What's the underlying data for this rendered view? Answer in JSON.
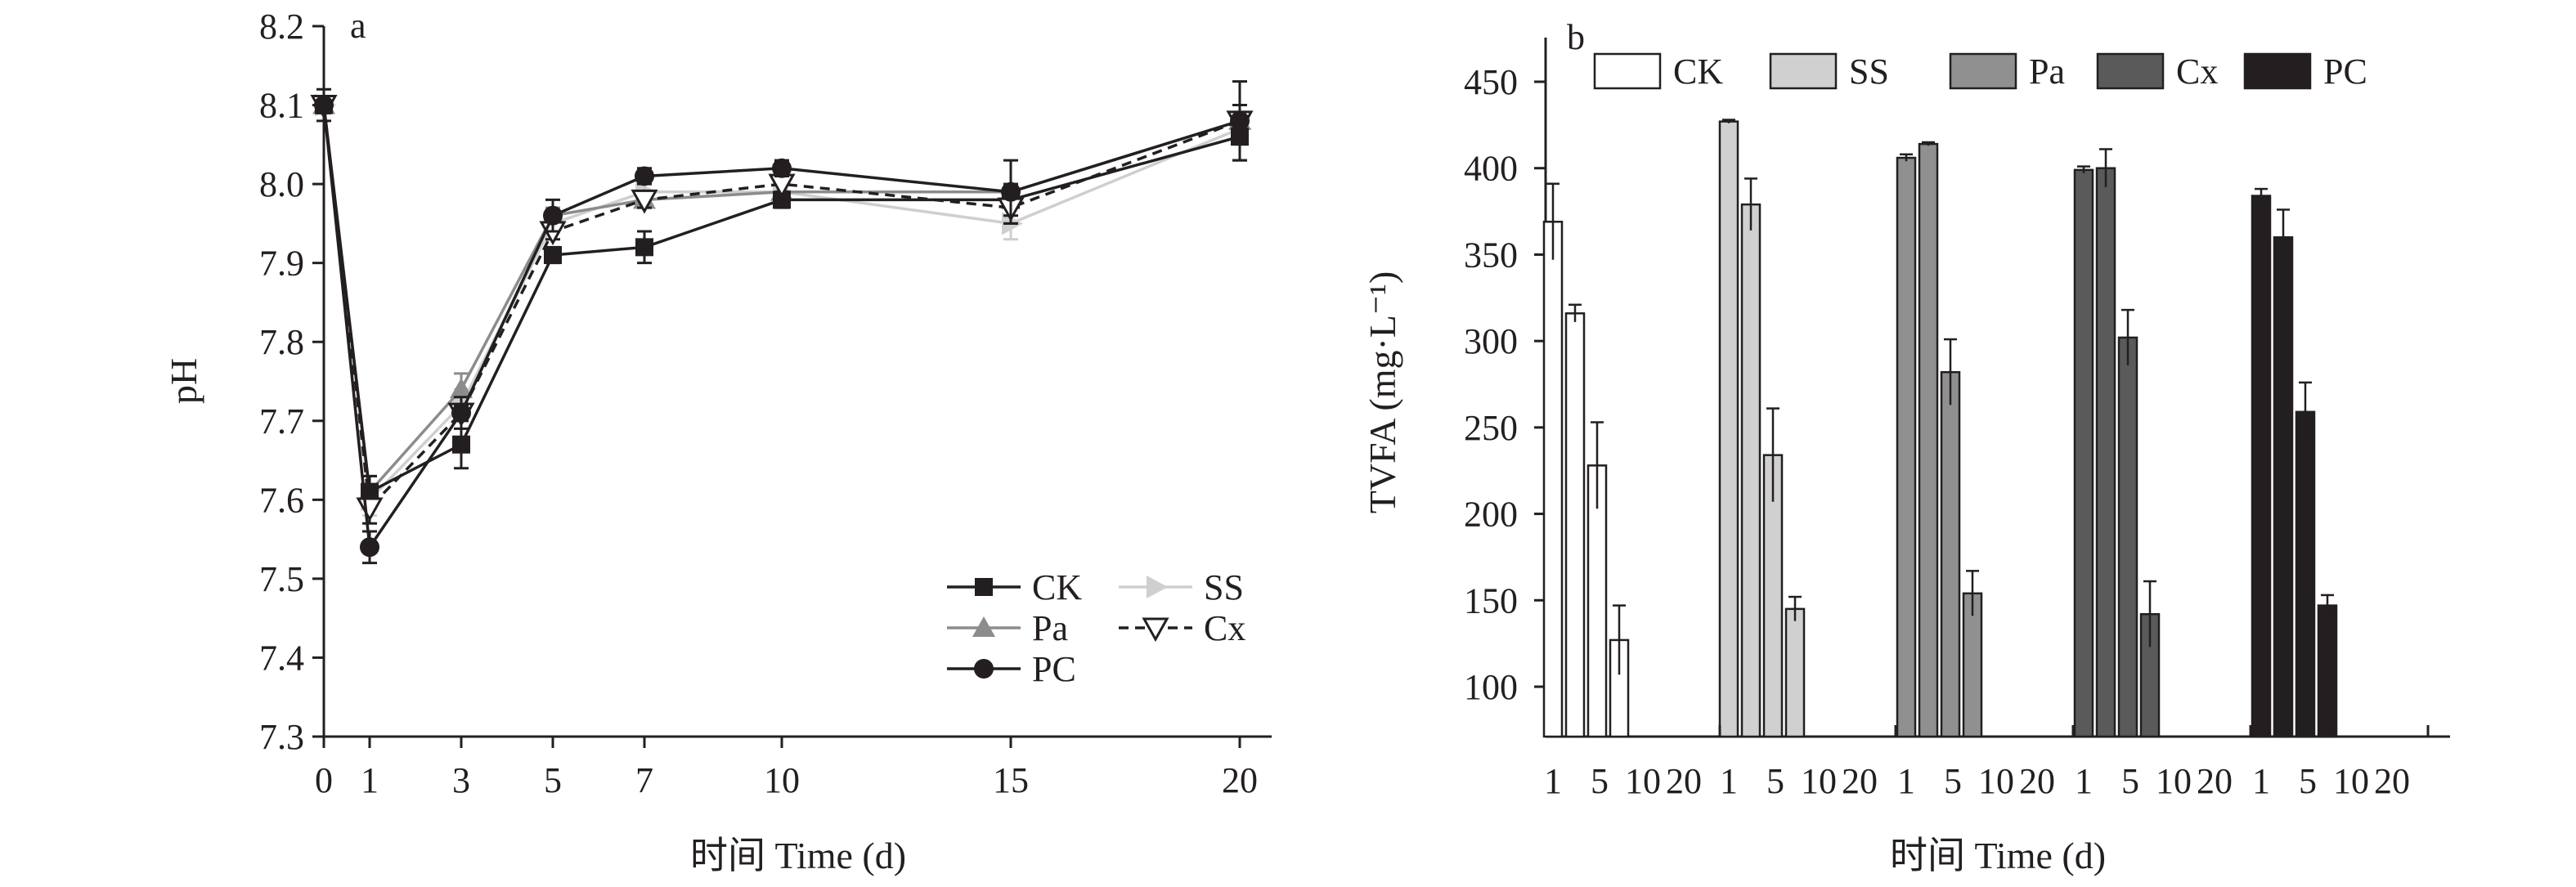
{
  "figure": {
    "panels": [
      {
        "label": "a"
      },
      {
        "label": "b"
      }
    ]
  },
  "chart_data": [
    {
      "type": "line",
      "panel": "a",
      "title": "",
      "xlabel": "时间 Time (d)",
      "ylabel": "pH",
      "x": [
        0,
        1,
        3,
        5,
        7,
        10,
        15,
        20
      ],
      "xticks": [
        "0",
        "1",
        "3",
        "5",
        "7",
        "10",
        "15",
        "20"
      ],
      "ylim": [
        7.3,
        8.2
      ],
      "yticks": [
        "7.3",
        "7.4",
        "7.5",
        "7.6",
        "7.7",
        "7.8",
        "7.9",
        "8.0",
        "8.1",
        "8.2"
      ],
      "legend_position": "lower-right",
      "series": [
        {
          "name": "CK",
          "values": [
            8.1,
            7.61,
            7.67,
            7.91,
            7.92,
            7.98,
            7.98,
            8.06
          ],
          "errors": [
            0.01,
            0.02,
            0.03,
            0.01,
            0.02,
            0.01,
            0.02,
            0.03
          ],
          "color": "#231f20",
          "marker": "square",
          "dash": "solid"
        },
        {
          "name": "SS",
          "values": [
            8.1,
            7.6,
            7.72,
            7.95,
            7.99,
            7.99,
            7.95,
            8.07
          ],
          "errors": [
            0.01,
            0.02,
            0.02,
            0.01,
            0.01,
            0.01,
            0.02,
            0.02
          ],
          "color": "#cfcfcf",
          "marker": "triangle-right",
          "dash": "solid"
        },
        {
          "name": "Pa",
          "values": [
            8.1,
            7.61,
            7.74,
            7.96,
            7.98,
            7.99,
            7.99,
            8.08
          ],
          "errors": [
            0.01,
            0.02,
            0.02,
            0.01,
            0.01,
            0.01,
            0.01,
            0.02
          ],
          "color": "#8c8c8c",
          "marker": "triangle-up",
          "dash": "solid"
        },
        {
          "name": "Cx",
          "values": [
            8.1,
            7.59,
            7.71,
            7.94,
            7.98,
            8.0,
            7.97,
            8.08
          ],
          "errors": [
            0.01,
            0.02,
            0.02,
            0.01,
            0.01,
            0.01,
            0.02,
            0.02
          ],
          "color": "#231f20",
          "marker": "triangle-down-open",
          "dash": "dashed"
        },
        {
          "name": "PC",
          "values": [
            8.1,
            7.54,
            7.71,
            7.96,
            8.01,
            8.02,
            7.99,
            8.08
          ],
          "errors": [
            0.02,
            0.02,
            0.01,
            0.02,
            0.01,
            0.01,
            0.04,
            0.05
          ],
          "color": "#231f20",
          "marker": "circle",
          "dash": "solid"
        }
      ]
    },
    {
      "type": "bar",
      "panel": "b",
      "title": "",
      "xlabel": "时间 Time (d)",
      "ylabel": "TVFA (mg·L⁻¹)",
      "categories": [
        "1",
        "5",
        "10",
        "20"
      ],
      "ylim": [
        80,
        460
      ],
      "yticks": [
        "100",
        "150",
        "200",
        "250",
        "300",
        "350",
        "400",
        "450"
      ],
      "legend_position": "top",
      "series": [
        {
          "name": "CK",
          "color": "#ffffff",
          "values": [
            369,
            316,
            228,
            127
          ],
          "errors": [
            22,
            5,
            25,
            20
          ]
        },
        {
          "name": "SS",
          "color": "#d0d0d0",
          "values": [
            427,
            379,
            234,
            145
          ],
          "errors": [
            1,
            15,
            27,
            7
          ]
        },
        {
          "name": "Pa",
          "color": "#909090",
          "values": [
            406,
            414,
            282,
            154
          ],
          "errors": [
            2,
            1,
            19,
            13
          ]
        },
        {
          "name": "Cx",
          "color": "#5a5a5a",
          "values": [
            399,
            400,
            302,
            142
          ],
          "errors": [
            2,
            11,
            16,
            19
          ]
        },
        {
          "name": "PC",
          "color": "#231f20",
          "values": [
            384,
            360,
            259,
            147
          ],
          "errors": [
            4,
            16,
            17,
            6
          ]
        }
      ]
    }
  ]
}
